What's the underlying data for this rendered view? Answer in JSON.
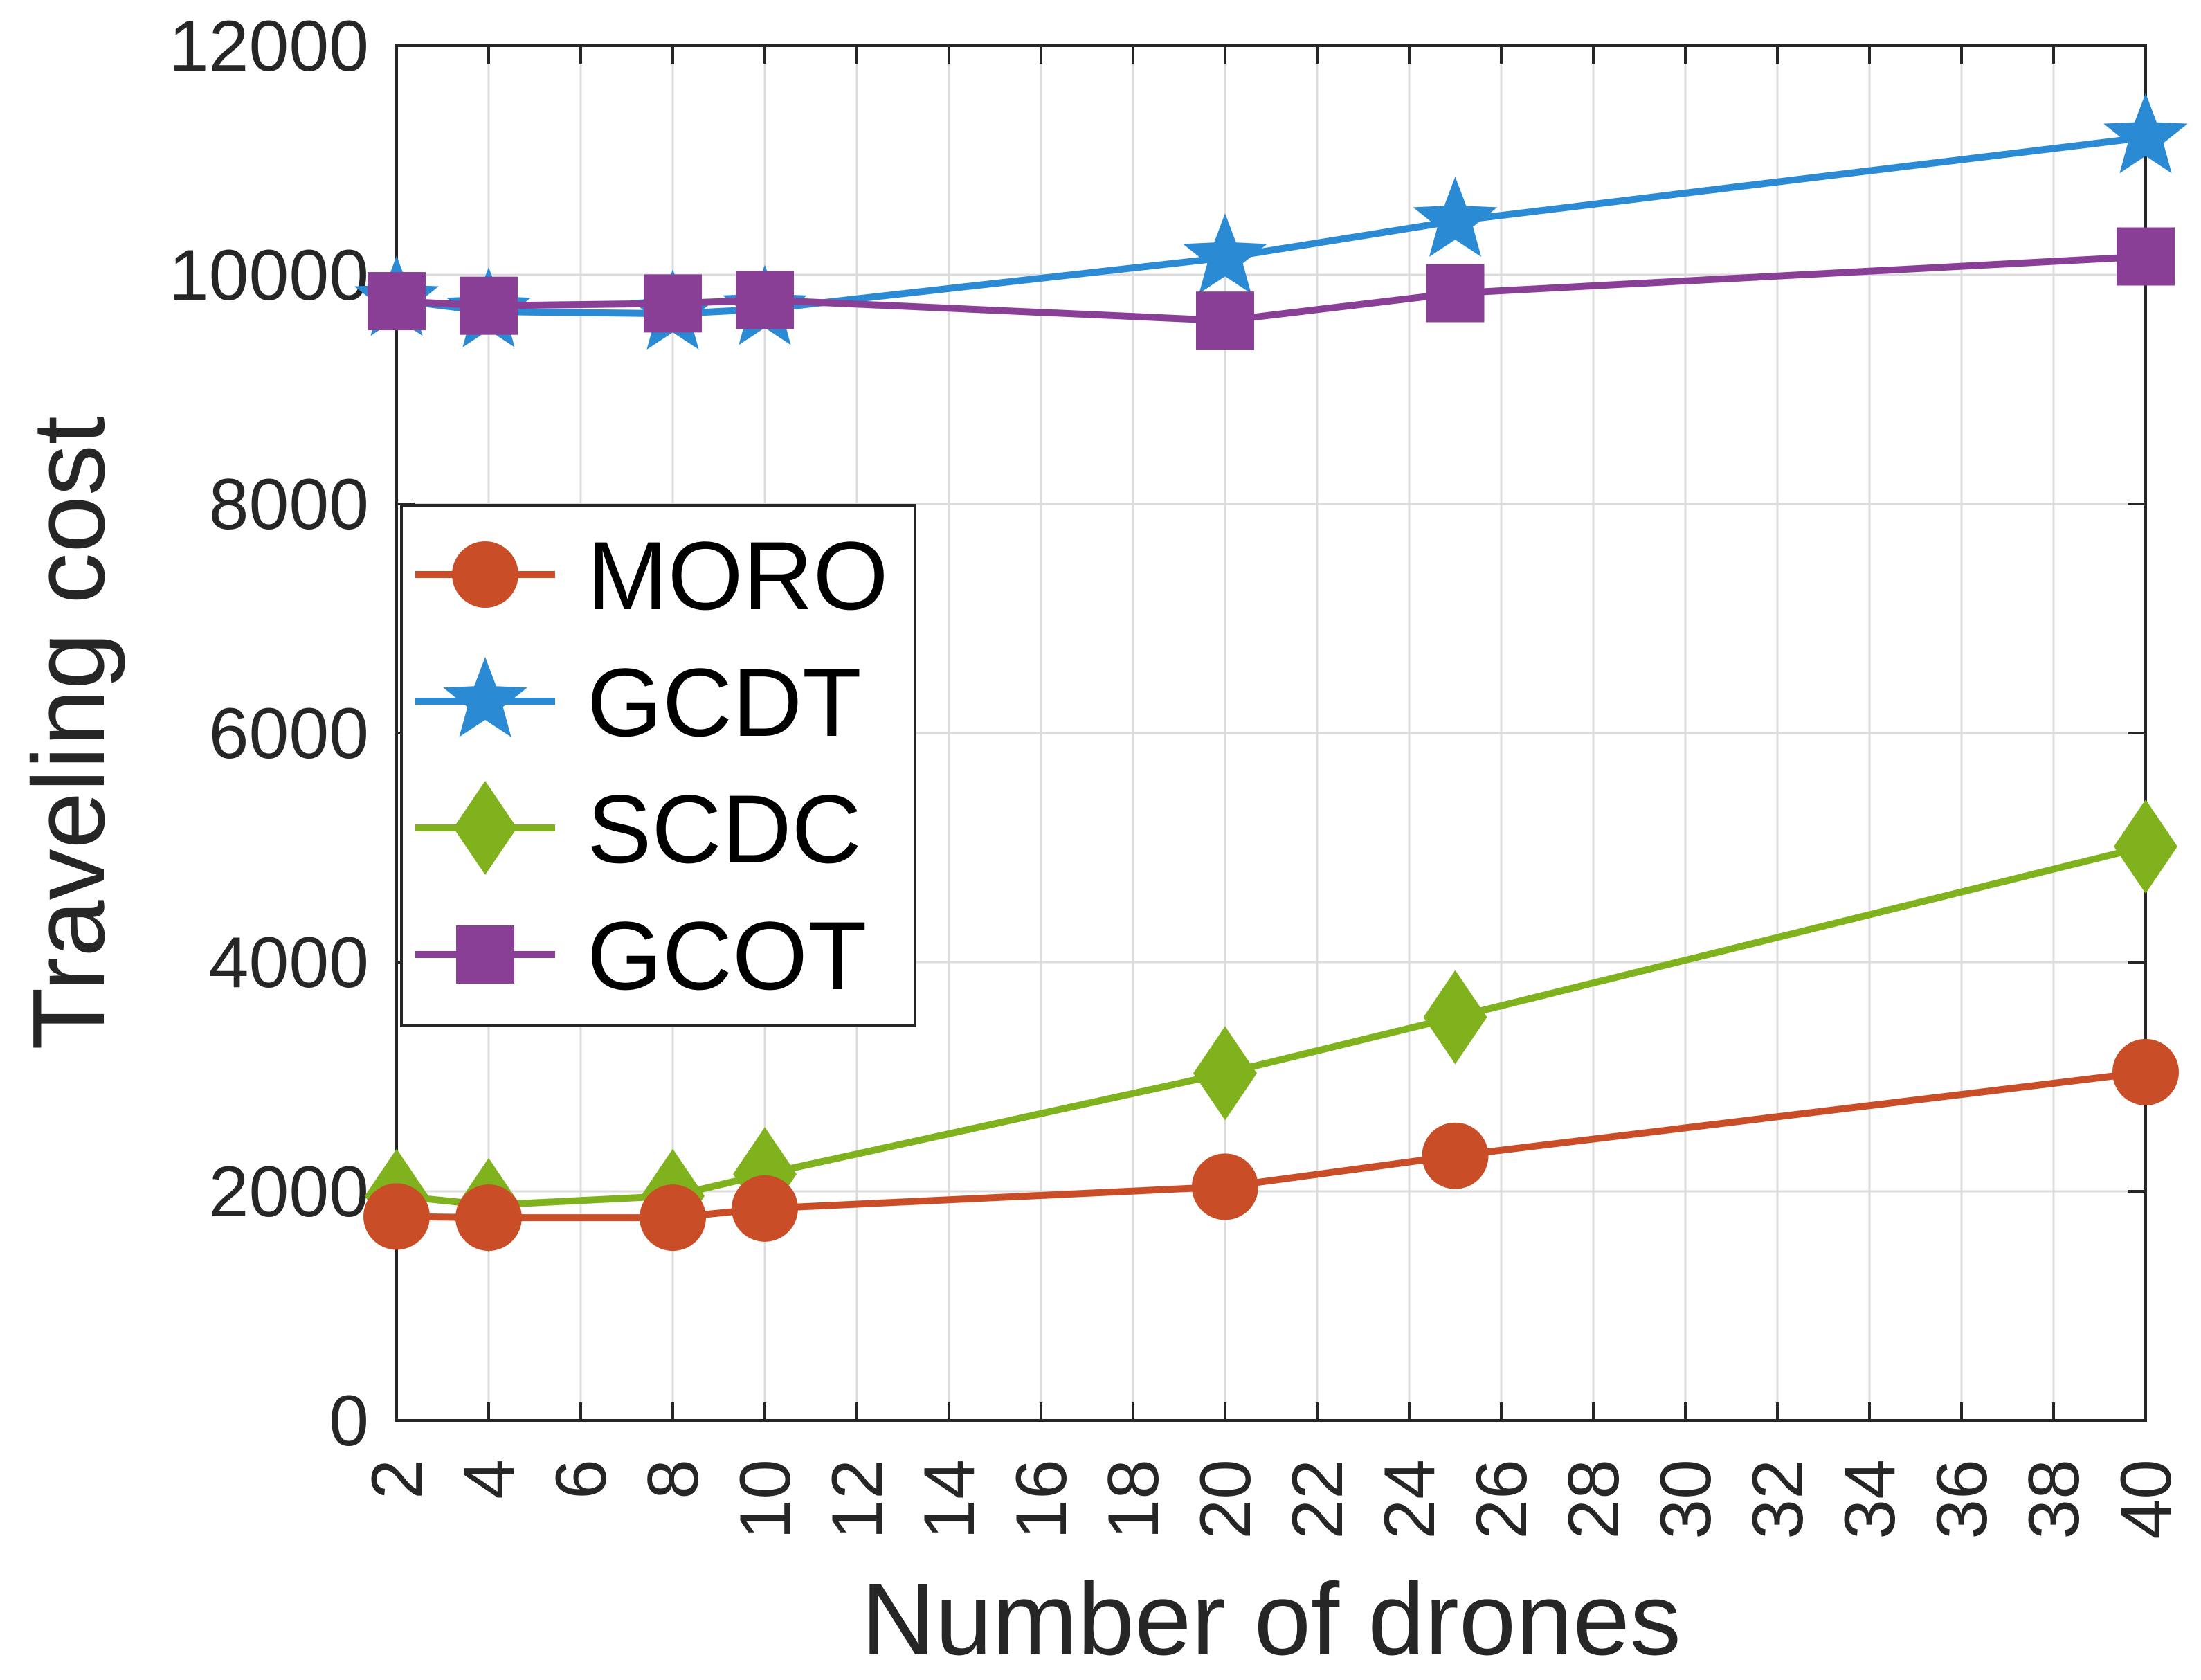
{
  "chart_data": {
    "type": "line",
    "title": "",
    "xlabel": "Number of drones",
    "ylabel": "Traveling cost",
    "xlim": [
      2,
      40
    ],
    "ylim": [
      0,
      12000
    ],
    "x_ticks": [
      2,
      4,
      6,
      8,
      10,
      12,
      14,
      16,
      18,
      20,
      22,
      24,
      26,
      28,
      30,
      32,
      34,
      36,
      38,
      40
    ],
    "y_ticks": [
      0,
      2000,
      4000,
      6000,
      8000,
      10000,
      12000
    ],
    "x_tick_labels": [
      "2",
      "4",
      "6",
      "8",
      "10",
      "12",
      "14",
      "16",
      "18",
      "20",
      "22",
      "24",
      "26",
      "28",
      "30",
      "32",
      "34",
      "36",
      "38",
      "40"
    ],
    "y_tick_labels": [
      "0",
      "2000",
      "4000",
      "6000",
      "8000",
      "10000",
      "12000"
    ],
    "grid": true,
    "legend_position": "center-left",
    "x": [
      2,
      4,
      8,
      10,
      20,
      25,
      40
    ],
    "series": [
      {
        "name": "MORO",
        "color": "#C94D27",
        "marker": "circle",
        "values": [
          1780,
          1770,
          1770,
          1850,
          2040,
          2310,
          3040
        ]
      },
      {
        "name": "GCDT",
        "color": "#2A8AD4",
        "marker": "star",
        "values": [
          9780,
          9680,
          9660,
          9700,
          10150,
          10470,
          11200
        ]
      },
      {
        "name": "SCDC",
        "color": "#7FB21D",
        "marker": "diamond",
        "values": [
          1960,
          1880,
          1960,
          2150,
          3030,
          3520,
          5010
        ]
      },
      {
        "name": "GCOT",
        "color": "#8A3F96",
        "marker": "square",
        "values": [
          9770,
          9730,
          9750,
          9780,
          9600,
          9840,
          10160
        ]
      }
    ]
  }
}
